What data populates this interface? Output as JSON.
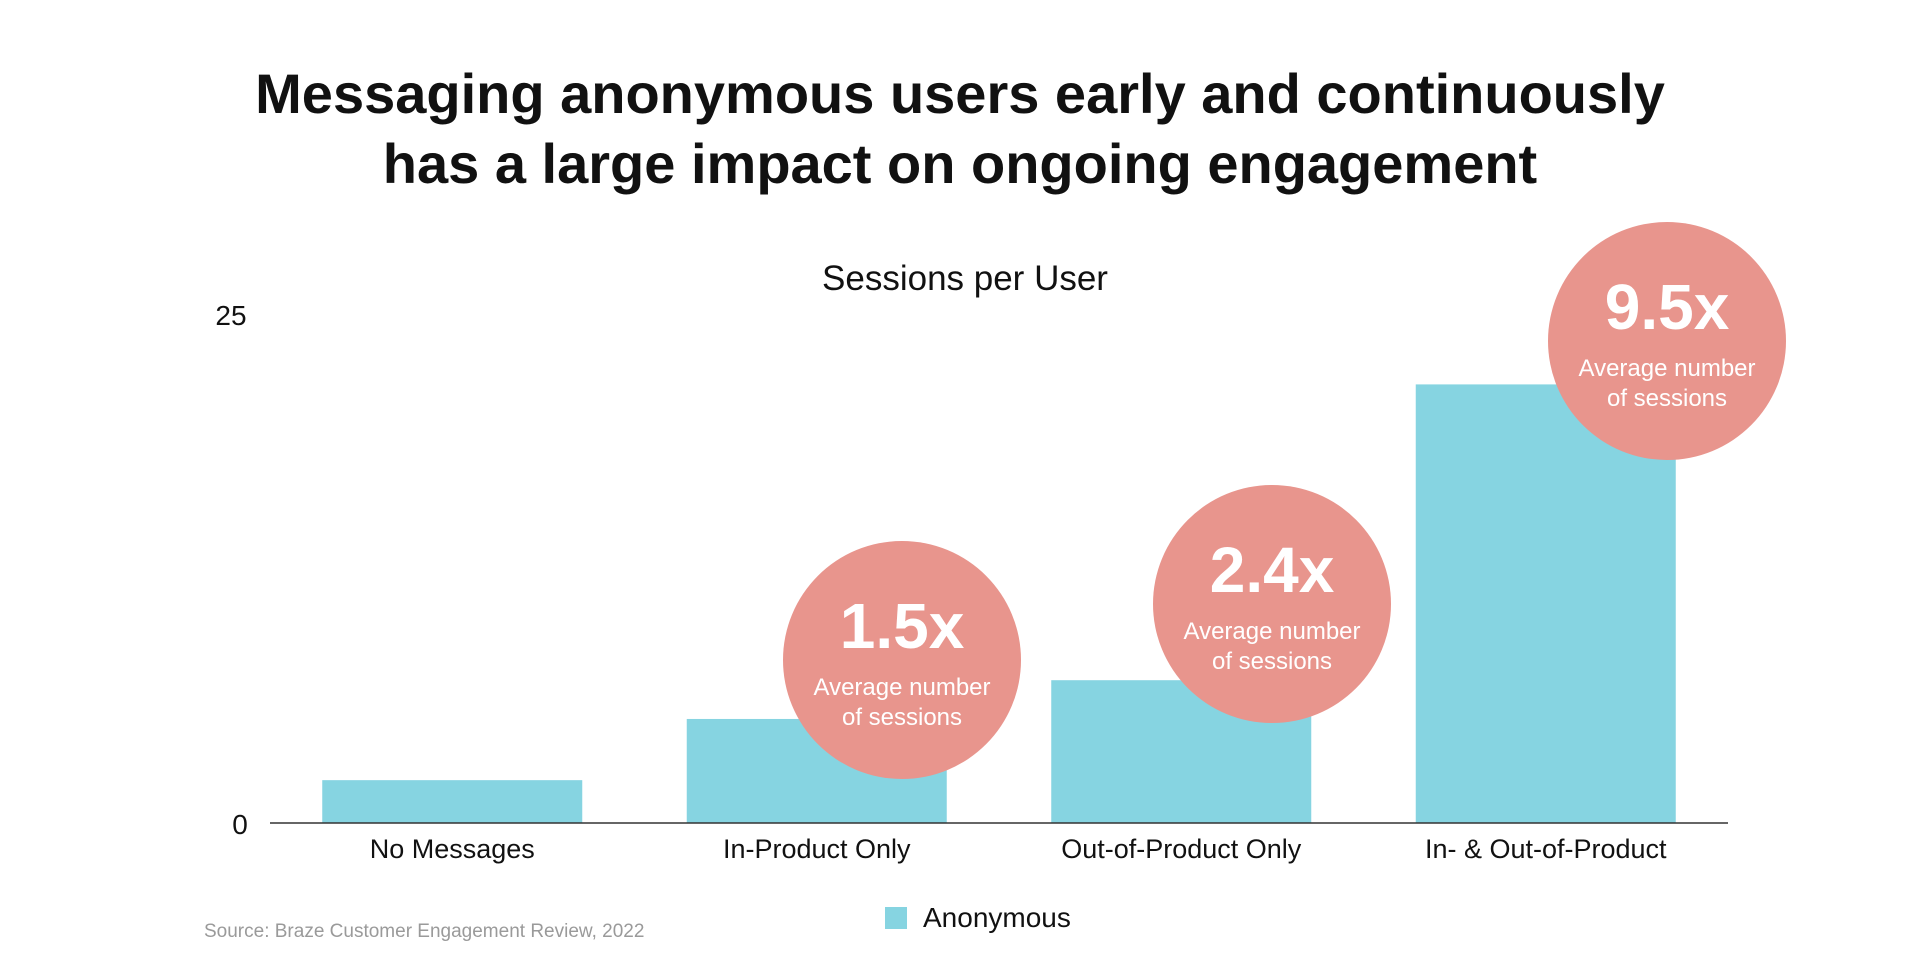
{
  "chart_data": {
    "type": "bar",
    "title_lines": [
      "Messaging anonymous users early and continuously",
      "has a large impact on ongoing engagement"
    ],
    "subtitle": "Sessions per User",
    "categories": [
      "No Messages",
      "In-Product Only",
      "Out-of-Product Only",
      "In- & Out-of-Product"
    ],
    "series": [
      {
        "name": "Anonymous",
        "values": [
          2.1,
          5.1,
          7.0,
          21.5
        ],
        "color": "#86D4E1"
      }
    ],
    "ylim": [
      0,
      25
    ],
    "yticks": [
      "0",
      "25"
    ],
    "grid": false,
    "legend_position": "bottom",
    "annotations": [
      {
        "category_index": 1,
        "value": "1.5x",
        "label_lines": [
          "Average number",
          "of sessions"
        ]
      },
      {
        "category_index": 2,
        "value": "2.4x",
        "label_lines": [
          "Average number",
          "of sessions"
        ]
      },
      {
        "category_index": 3,
        "value": "9.5x",
        "label_lines": [
          "Average number",
          "of sessions"
        ]
      }
    ],
    "source": "Source: Braze Customer Engagement Review, 2022"
  },
  "colors": {
    "bar": "#86D4E1",
    "bubble": "#E8958D",
    "text": "#111111",
    "muted": "#9A9A9A",
    "axis": "#333333",
    "bubble_text": "#ffffff"
  }
}
